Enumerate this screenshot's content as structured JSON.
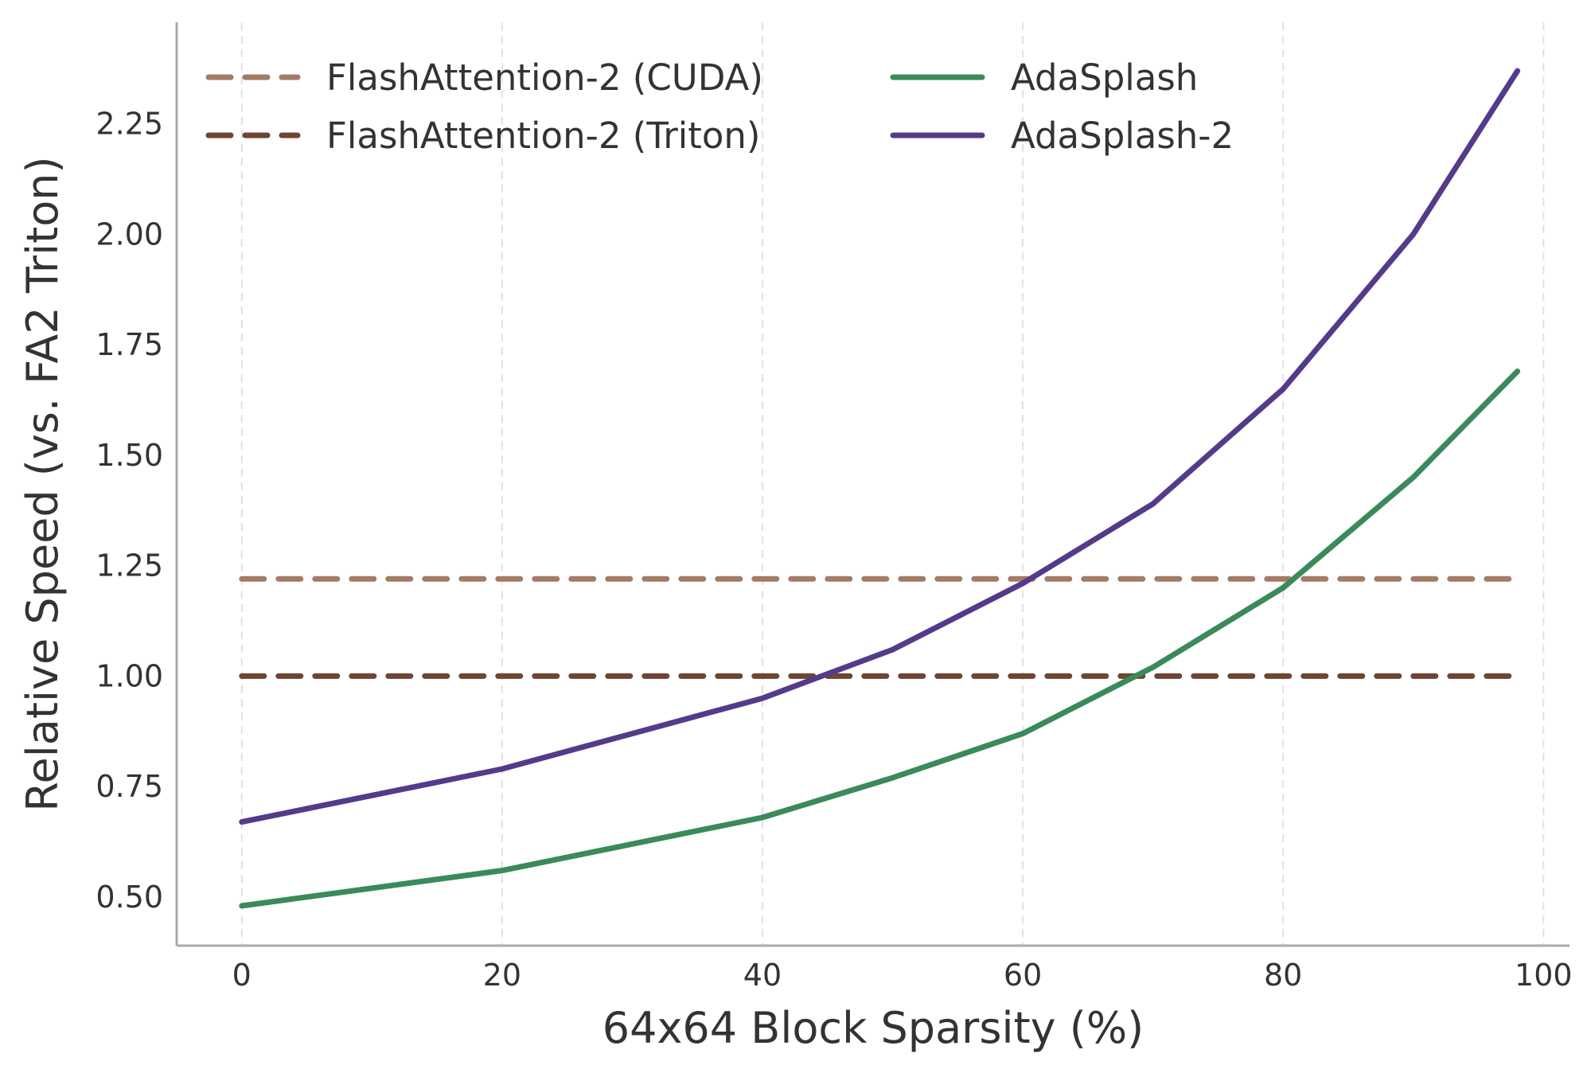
{
  "chart_data": {
    "type": "line",
    "title": "",
    "xlabel": "64x64 Block Sparsity (%)",
    "ylabel": "Relative Speed (vs. FA2 Triton)",
    "xlim": [
      -5,
      102
    ],
    "ylim": [
      0.39,
      2.48
    ],
    "xticks": [
      0,
      20,
      40,
      60,
      80,
      100
    ],
    "yticks": [
      0.5,
      0.75,
      1.0,
      1.25,
      1.5,
      1.75,
      2.0,
      2.25
    ],
    "xtick_labels": [
      "0",
      "20",
      "40",
      "60",
      "80",
      "100"
    ],
    "ytick_labels": [
      "0.50",
      "0.75",
      "1.00",
      "1.25",
      "1.50",
      "1.75",
      "2.00",
      "2.25"
    ],
    "grid": "vertical-dashed",
    "legend_position": "top-left",
    "series": [
      {
        "name": "FlashAttention-2 (CUDA)",
        "style": "dashed",
        "color": "#a47b65",
        "x": [
          0,
          98
        ],
        "y": [
          1.22,
          1.22
        ]
      },
      {
        "name": "FlashAttention-2 (Triton)",
        "style": "dashed",
        "color": "#6e4532",
        "x": [
          0,
          98
        ],
        "y": [
          1.0,
          1.0
        ]
      },
      {
        "name": "AdaSplash",
        "style": "solid",
        "color": "#3a8a5a",
        "x": [
          0,
          10,
          20,
          30,
          40,
          50,
          60,
          70,
          80,
          90,
          98
        ],
        "y": [
          0.48,
          0.52,
          0.56,
          0.62,
          0.68,
          0.77,
          0.87,
          1.02,
          1.2,
          1.45,
          1.69
        ]
      },
      {
        "name": "AdaSplash-2",
        "style": "solid",
        "color": "#563a8a",
        "x": [
          0,
          10,
          20,
          30,
          40,
          50,
          60,
          70,
          80,
          90,
          98
        ],
        "y": [
          0.67,
          0.73,
          0.79,
          0.87,
          0.95,
          1.06,
          1.21,
          1.39,
          1.65,
          2.0,
          2.37
        ]
      }
    ]
  }
}
